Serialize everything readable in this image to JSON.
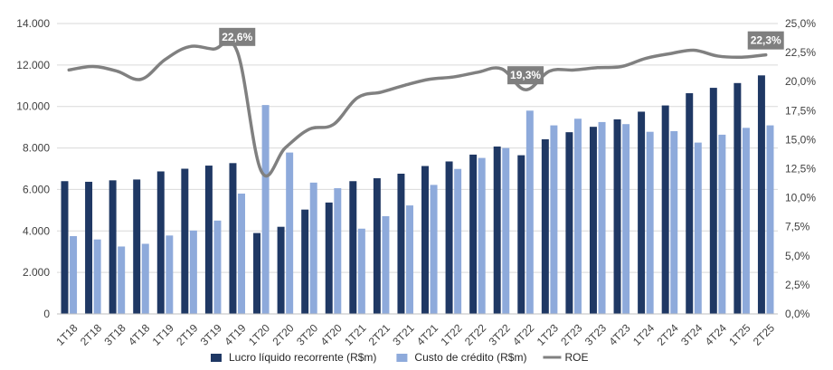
{
  "chart_data": {
    "type": "bar",
    "categories": [
      "1T18",
      "2T18",
      "3T18",
      "4T18",
      "1T19",
      "2T19",
      "3T19",
      "4T19",
      "1T20",
      "2T20",
      "3T20",
      "4T20",
      "1T21",
      "2T21",
      "3T21",
      "4T21",
      "1T22",
      "2T22",
      "3T22",
      "4T22",
      "1T23",
      "2T23",
      "3T23",
      "4T23",
      "1T24",
      "2T24",
      "3T24",
      "4T24",
      "1T25",
      "2T25"
    ],
    "series": [
      {
        "name": "Lucro líquido recorrente (R$m)",
        "kind": "bar",
        "axis": "left",
        "color": "#1f3864",
        "values": [
          6400,
          6370,
          6440,
          6480,
          6870,
          7000,
          7150,
          7270,
          3900,
          4200,
          5030,
          5370,
          6400,
          6540,
          6760,
          7130,
          7350,
          7680,
          8070,
          7650,
          8420,
          8760,
          9020,
          9380,
          9750,
          10050,
          10640,
          10900,
          11130,
          11500
        ]
      },
      {
        "name": "Custo de crédito (R$m)",
        "kind": "bar",
        "axis": "left",
        "color": "#8eaadb",
        "values": [
          3750,
          3590,
          3250,
          3380,
          3780,
          4020,
          4500,
          5800,
          10070,
          7780,
          6330,
          6060,
          4110,
          4710,
          5230,
          6220,
          6990,
          7520,
          8000,
          9800,
          9090,
          9410,
          9250,
          9150,
          8780,
          8810,
          8260,
          8640,
          8970,
          9090
        ]
      },
      {
        "name": "ROE",
        "kind": "line",
        "axis": "right",
        "color": "#808080",
        "values": [
          21.0,
          21.3,
          20.9,
          20.2,
          21.9,
          23.0,
          22.8,
          22.6,
          12.3,
          14.3,
          15.9,
          16.3,
          18.6,
          19.1,
          19.7,
          20.2,
          20.4,
          20.8,
          21.1,
          19.3,
          20.9,
          21.0,
          21.2,
          21.3,
          22.0,
          22.4,
          22.7,
          22.2,
          22.1,
          22.3
        ]
      }
    ],
    "y_left": {
      "ylim": [
        0,
        14000
      ],
      "ticks": [
        "0",
        "2.000",
        "4.000",
        "6.000",
        "8.000",
        "10.000",
        "12.000",
        "14.000"
      ]
    },
    "y_right": {
      "ylim": [
        0,
        25
      ],
      "ticks": [
        "0,0%",
        "2,5%",
        "5,0%",
        "7,5%",
        "10,0%",
        "12,5%",
        "15,0%",
        "17,5%",
        "20,0%",
        "22,5%",
        "25,0%"
      ]
    },
    "annotations": [
      {
        "category": "4T19",
        "label": "22,6%"
      },
      {
        "category": "4T22",
        "label": "19,3%"
      },
      {
        "category": "2T25",
        "label": "22,3%"
      }
    ],
    "grid": true,
    "legend_position": "bottom"
  }
}
